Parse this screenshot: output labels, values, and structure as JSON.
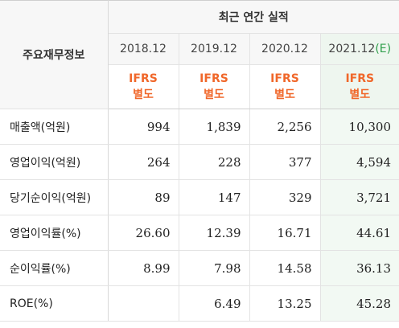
{
  "table": {
    "corner_label": "주요재무정보",
    "period_label": "최근 연간 실적",
    "years": [
      {
        "label": "2018.12",
        "est": ""
      },
      {
        "label": "2019.12",
        "est": ""
      },
      {
        "label": "2020.12",
        "est": ""
      },
      {
        "label": "2021.12",
        "est": "(E)"
      }
    ],
    "basis": [
      {
        "line1": "IFRS",
        "line2": "별도"
      },
      {
        "line1": "IFRS",
        "line2": "별도"
      },
      {
        "line1": "IFRS",
        "line2": "별도"
      },
      {
        "line1": "IFRS",
        "line2": "별도"
      }
    ],
    "rows": [
      {
        "label": "매출액(억원)",
        "values": [
          "994",
          "1,839",
          "2,256",
          "10,300"
        ]
      },
      {
        "label": "영업이익(억원)",
        "values": [
          "264",
          "228",
          "377",
          "4,594"
        ]
      },
      {
        "label": "당기순이익(억원)",
        "values": [
          "89",
          "147",
          "329",
          "3,721"
        ]
      },
      {
        "label": "영업이익률(%)",
        "values": [
          "26.60",
          "12.39",
          "16.71",
          "44.61"
        ]
      },
      {
        "label": "순이익률(%)",
        "values": [
          "8.99",
          "7.98",
          "14.58",
          "36.13"
        ]
      },
      {
        "label": "ROE(%)",
        "values": [
          "",
          "6.49",
          "13.25",
          "45.28"
        ]
      }
    ]
  },
  "colors": {
    "ifrs_orange": "#f0672a",
    "estimate_green": "#2e9e4a",
    "estimate_column_bg": "#f2f9f3"
  }
}
